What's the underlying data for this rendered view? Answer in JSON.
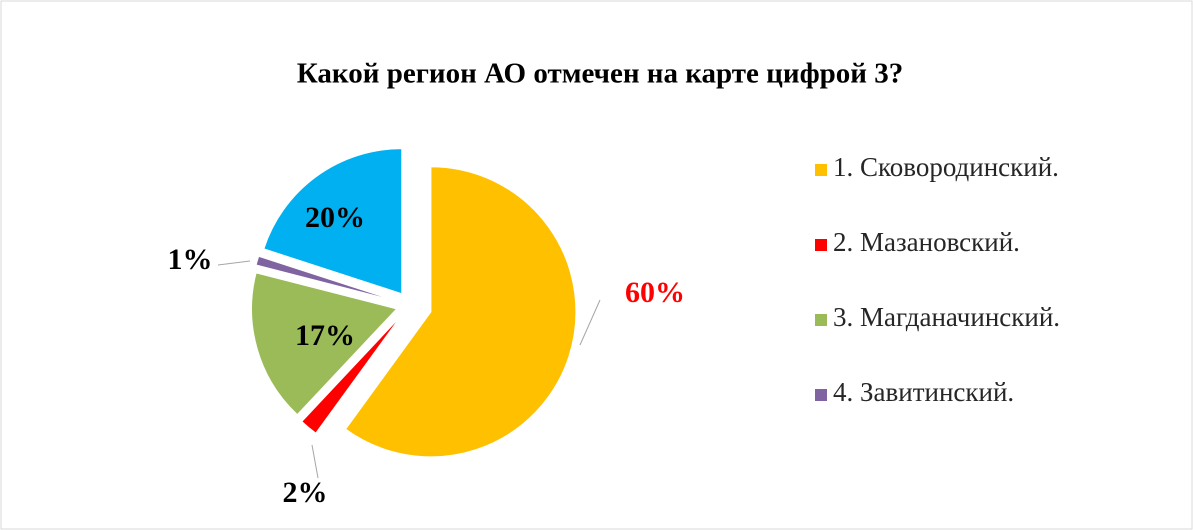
{
  "chart_data": {
    "type": "pie",
    "title": "Какой регион АО отмечен на карте цифрой 3?",
    "categories": [
      "1. Сковородинский.",
      "2. Мазановский.",
      "3. Магданачинский.",
      "4. Завитинский.",
      null
    ],
    "values": [
      60,
      2,
      17,
      1,
      20
    ],
    "value_labels": [
      "60%",
      "2%",
      "17%",
      "1%",
      "20%"
    ],
    "colors": [
      "#ffc000",
      "#ff0000",
      "#9bbb59",
      "#8064a2",
      "#00b0f0"
    ],
    "value_label_colors": [
      "#ff0000",
      "#000000",
      "#000000",
      "#000000",
      "#000000"
    ],
    "legend": "right"
  }
}
